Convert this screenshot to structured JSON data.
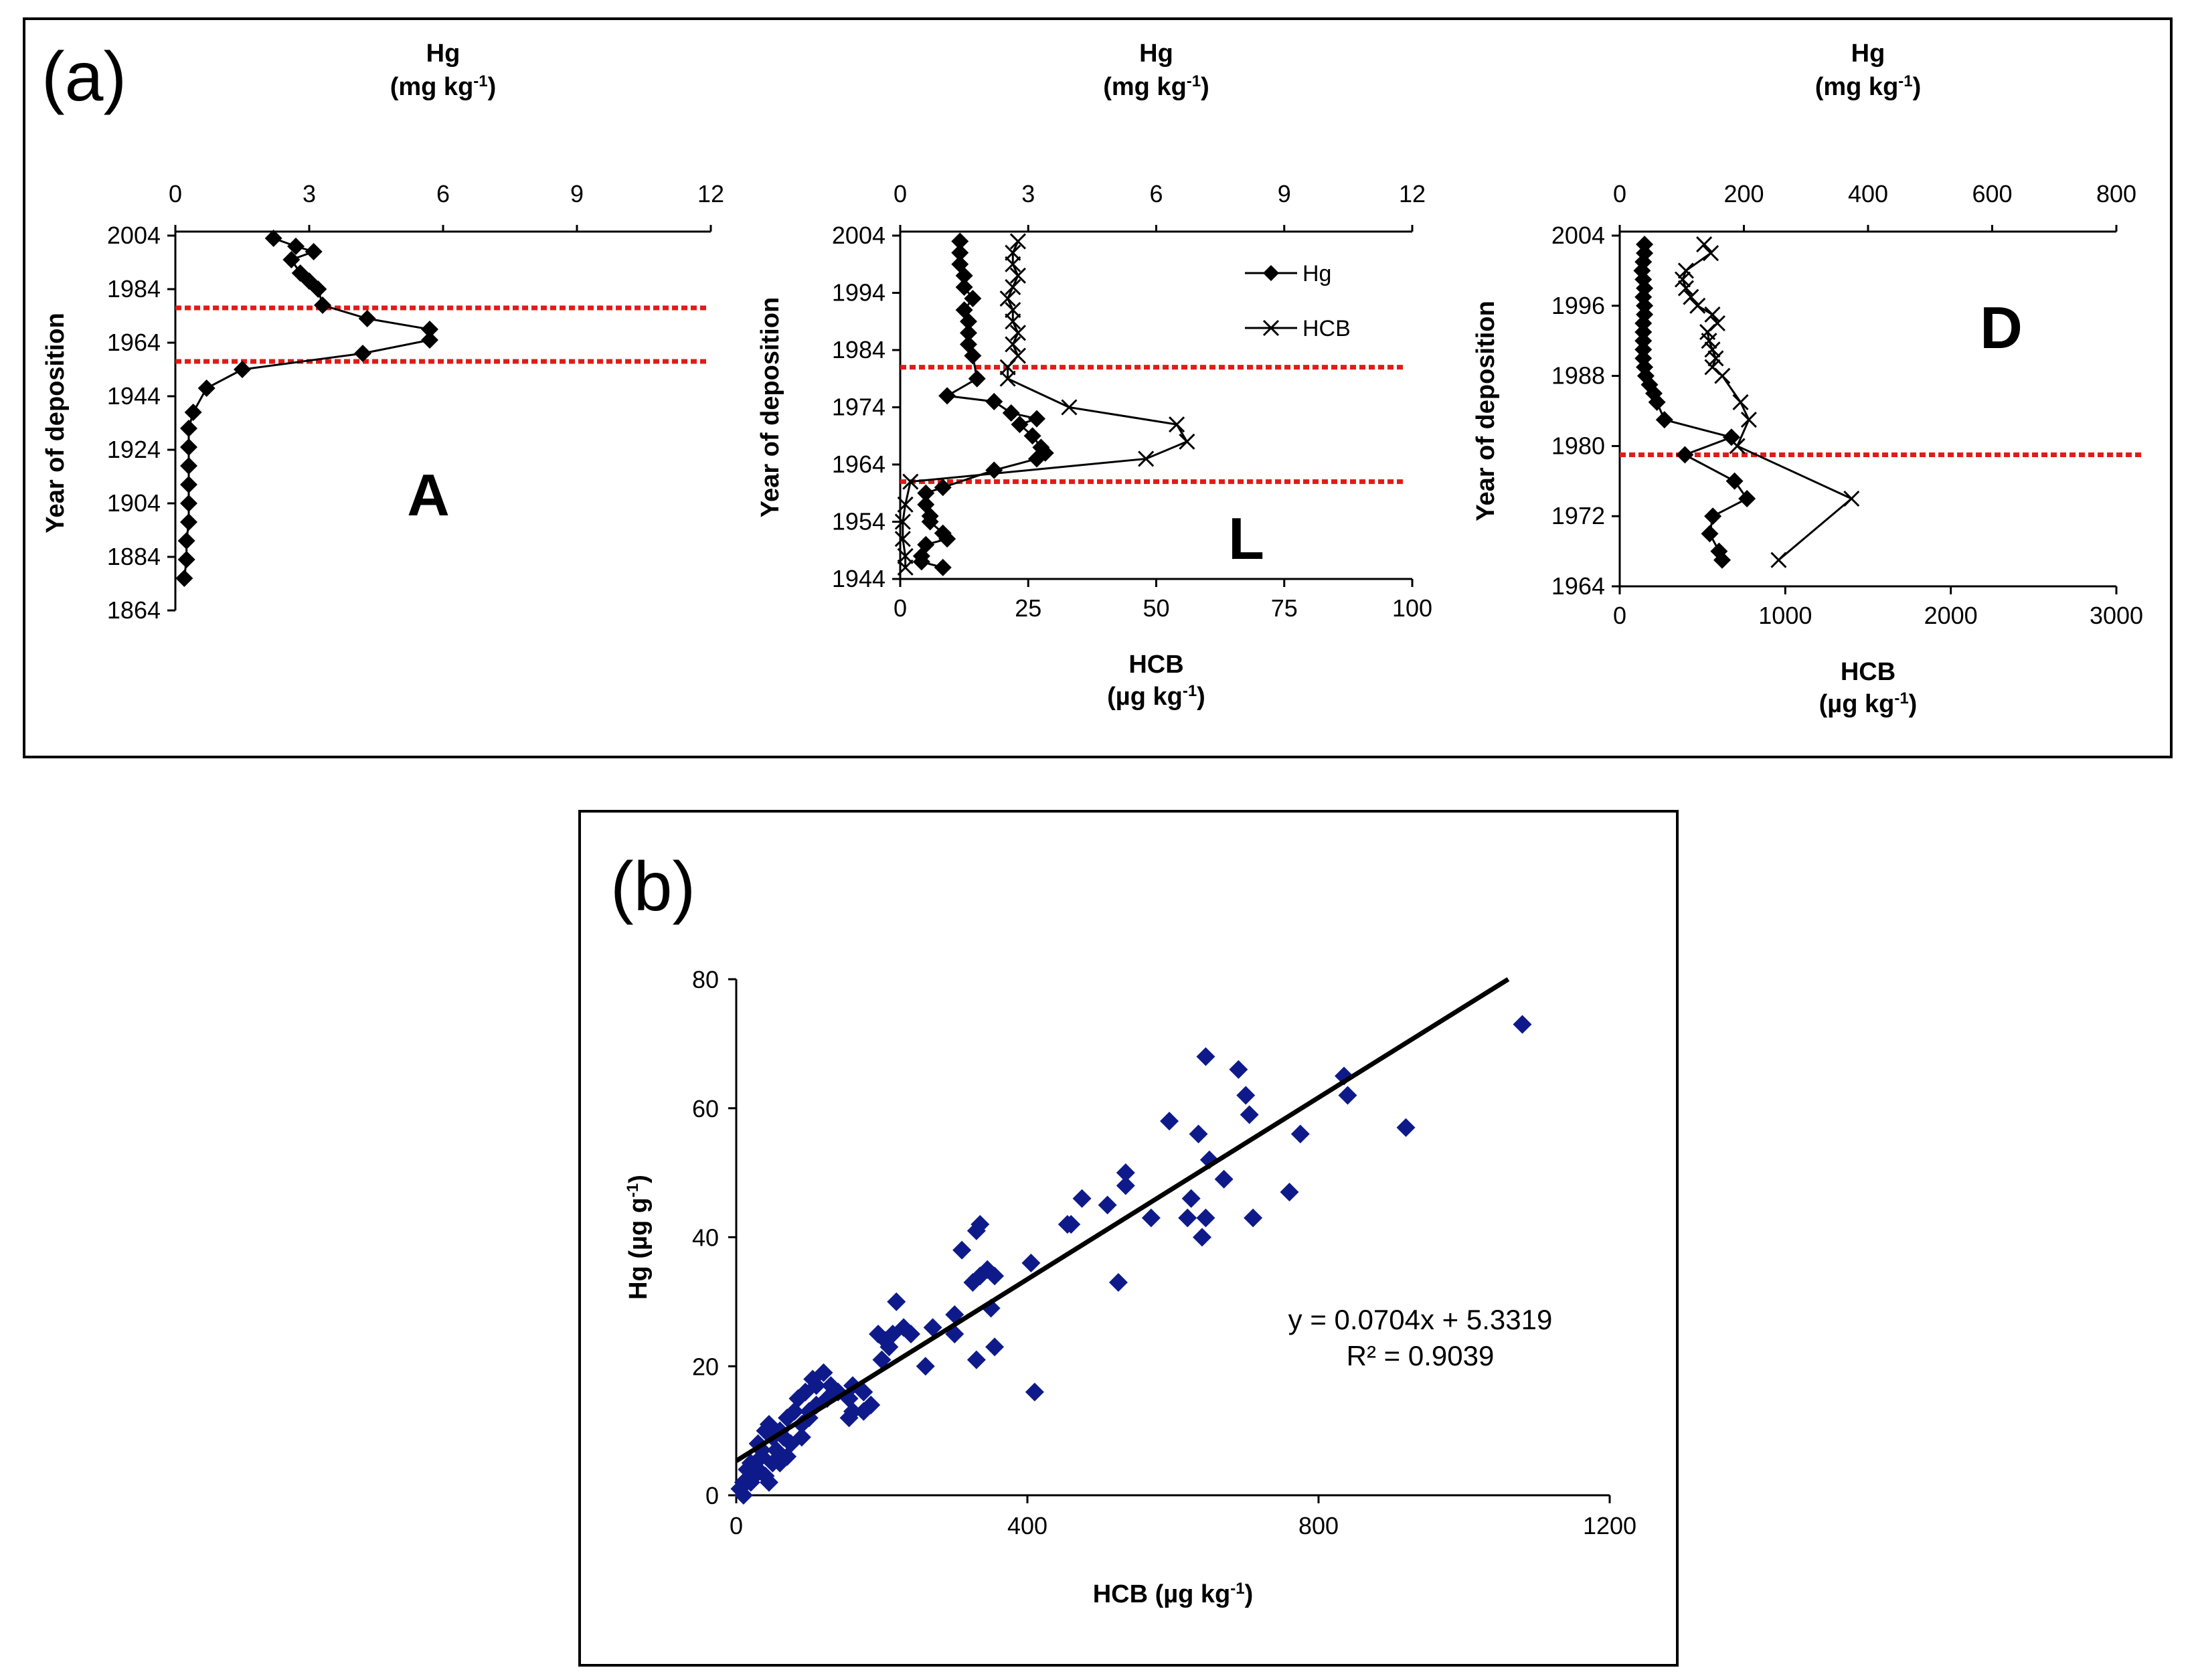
{
  "figure_labels": {
    "a": "(a)",
    "b": "(b)"
  },
  "chart_data": [
    {
      "type": "line",
      "panel": "(a)",
      "site_label": "A",
      "x_top_label": "Hg",
      "x_top_unit": "(mg kg-1)",
      "x_top_ticks": [
        "0",
        "3",
        "6",
        "9",
        "12"
      ],
      "xlim_top": [
        0,
        12
      ],
      "ylabel": "Year of deposition",
      "y_ticks": [
        "2004",
        "1984",
        "1964",
        "1944",
        "1924",
        "1904",
        "1884",
        "1864"
      ],
      "ylim": [
        1864,
        2004
      ],
      "reference_lines_year": [
        1977,
        1957
      ],
      "series": [
        {
          "name": "Hg",
          "axis": "top",
          "marker": "diamond",
          "points": [
            {
              "x": 2.2,
              "y": 2003
            },
            {
              "x": 2.7,
              "y": 2000
            },
            {
              "x": 3.1,
              "y": 1998
            },
            {
              "x": 2.6,
              "y": 1995
            },
            {
              "x": 2.8,
              "y": 1990
            },
            {
              "x": 3.0,
              "y": 1987
            },
            {
              "x": 3.2,
              "y": 1984
            },
            {
              "x": 3.3,
              "y": 1978
            },
            {
              "x": 4.3,
              "y": 1973
            },
            {
              "x": 5.7,
              "y": 1969
            },
            {
              "x": 5.7,
              "y": 1965
            },
            {
              "x": 4.2,
              "y": 1960
            },
            {
              "x": 1.5,
              "y": 1954
            },
            {
              "x": 0.7,
              "y": 1947
            },
            {
              "x": 0.4,
              "y": 1938
            },
            {
              "x": 0.3,
              "y": 1932
            },
            {
              "x": 0.3,
              "y": 1925
            },
            {
              "x": 0.3,
              "y": 1918
            },
            {
              "x": 0.3,
              "y": 1911
            },
            {
              "x": 0.3,
              "y": 1904
            },
            {
              "x": 0.3,
              "y": 1897
            },
            {
              "x": 0.25,
              "y": 1890
            },
            {
              "x": 0.25,
              "y": 1883
            },
            {
              "x": 0.2,
              "y": 1876
            }
          ]
        }
      ]
    },
    {
      "type": "line",
      "panel": "(a)",
      "site_label": "L",
      "x_top_label": "Hg",
      "x_top_unit": "(mg kg-1)",
      "x_top_ticks": [
        "0",
        "3",
        "6",
        "9",
        "12"
      ],
      "xlim_top": [
        0,
        12
      ],
      "x_bottom_label": "HCB",
      "x_bottom_unit": "(µg kg-1)",
      "x_bottom_ticks": [
        "0",
        "25",
        "50",
        "75",
        "100"
      ],
      "xlim_bottom": [
        0,
        100
      ],
      "ylabel": "Year of deposition",
      "y_ticks": [
        "2004",
        "1994",
        "1984",
        "1974",
        "1964",
        "1954",
        "1944"
      ],
      "ylim": [
        1944,
        2004
      ],
      "reference_lines_year": [
        1981,
        1961
      ],
      "legend": [
        "Hg",
        "HCB"
      ],
      "series": [
        {
          "name": "Hg",
          "axis": "top",
          "marker": "diamond",
          "points": [
            {
              "x": 1.4,
              "y": 2003
            },
            {
              "x": 1.4,
              "y": 2001
            },
            {
              "x": 1.4,
              "y": 1999
            },
            {
              "x": 1.5,
              "y": 1997
            },
            {
              "x": 1.5,
              "y": 1995
            },
            {
              "x": 1.7,
              "y": 1993
            },
            {
              "x": 1.5,
              "y": 1991
            },
            {
              "x": 1.6,
              "y": 1989
            },
            {
              "x": 1.6,
              "y": 1987
            },
            {
              "x": 1.6,
              "y": 1985
            },
            {
              "x": 1.7,
              "y": 1983
            },
            {
              "x": 1.8,
              "y": 1979
            },
            {
              "x": 1.1,
              "y": 1976
            },
            {
              "x": 2.2,
              "y": 1975
            },
            {
              "x": 2.6,
              "y": 1973
            },
            {
              "x": 3.2,
              "y": 1972
            },
            {
              "x": 2.8,
              "y": 1971
            },
            {
              "x": 3.1,
              "y": 1969
            },
            {
              "x": 3.3,
              "y": 1967
            },
            {
              "x": 3.4,
              "y": 1966
            },
            {
              "x": 3.2,
              "y": 1965
            },
            {
              "x": 2.2,
              "y": 1963
            },
            {
              "x": 1.0,
              "y": 1960
            },
            {
              "x": 0.6,
              "y": 1959
            },
            {
              "x": 0.6,
              "y": 1957
            },
            {
              "x": 0.7,
              "y": 1955
            },
            {
              "x": 0.7,
              "y": 1954
            },
            {
              "x": 1.0,
              "y": 1952
            },
            {
              "x": 1.1,
              "y": 1951
            },
            {
              "x": 0.6,
              "y": 1950
            },
            {
              "x": 0.5,
              "y": 1948
            },
            {
              "x": 0.5,
              "y": 1947
            },
            {
              "x": 1.0,
              "y": 1946
            }
          ]
        },
        {
          "name": "HCB",
          "axis": "bottom",
          "marker": "x",
          "points": [
            {
              "x": 23,
              "y": 2003
            },
            {
              "x": 22,
              "y": 2001
            },
            {
              "x": 22,
              "y": 1999
            },
            {
              "x": 23,
              "y": 1997
            },
            {
              "x": 22,
              "y": 1995
            },
            {
              "x": 21,
              "y": 1993
            },
            {
              "x": 22,
              "y": 1991
            },
            {
              "x": 22,
              "y": 1989
            },
            {
              "x": 23,
              "y": 1987
            },
            {
              "x": 22,
              "y": 1985
            },
            {
              "x": 23,
              "y": 1983
            },
            {
              "x": 21,
              "y": 1981
            },
            {
              "x": 21,
              "y": 1979
            },
            {
              "x": 33,
              "y": 1974
            },
            {
              "x": 54,
              "y": 1971
            },
            {
              "x": 56,
              "y": 1968
            },
            {
              "x": 48,
              "y": 1965
            },
            {
              "x": 2,
              "y": 1961
            },
            {
              "x": 1,
              "y": 1957
            },
            {
              "x": 0.5,
              "y": 1954
            },
            {
              "x": 0.5,
              "y": 1951
            },
            {
              "x": 1,
              "y": 1948
            },
            {
              "x": 1,
              "y": 1946
            }
          ]
        }
      ]
    },
    {
      "type": "line",
      "panel": "(a)",
      "site_label": "D",
      "x_top_label": "Hg",
      "x_top_unit": "(mg kg-1)",
      "x_top_ticks": [
        "0",
        "200",
        "400",
        "600",
        "800"
      ],
      "xlim_top": [
        0,
        800
      ],
      "x_bottom_label": "HCB",
      "x_bottom_unit": "(µg kg-1)",
      "x_bottom_ticks": [
        "0",
        "1000",
        "2000",
        "3000"
      ],
      "xlim_bottom": [
        0,
        3000
      ],
      "ylabel": "Year of deposition",
      "y_ticks": [
        "2004",
        "1996",
        "1988",
        "1980",
        "1972",
        "1964"
      ],
      "ylim": [
        1964,
        2004
      ],
      "reference_lines_year": [
        1979
      ],
      "series": [
        {
          "name": "Hg",
          "axis": "top",
          "marker": "diamond",
          "points": [
            {
              "x": 40,
              "y": 2003
            },
            {
              "x": 40,
              "y": 2002
            },
            {
              "x": 38,
              "y": 2001
            },
            {
              "x": 36,
              "y": 2000
            },
            {
              "x": 38,
              "y": 1999
            },
            {
              "x": 40,
              "y": 1998
            },
            {
              "x": 38,
              "y": 1997
            },
            {
              "x": 40,
              "y": 1996
            },
            {
              "x": 40,
              "y": 1995
            },
            {
              "x": 38,
              "y": 1994
            },
            {
              "x": 38,
              "y": 1993
            },
            {
              "x": 38,
              "y": 1992
            },
            {
              "x": 38,
              "y": 1991
            },
            {
              "x": 38,
              "y": 1990
            },
            {
              "x": 40,
              "y": 1989
            },
            {
              "x": 42,
              "y": 1988
            },
            {
              "x": 48,
              "y": 1987
            },
            {
              "x": 55,
              "y": 1986
            },
            {
              "x": 60,
              "y": 1985
            },
            {
              "x": 72,
              "y": 1983
            },
            {
              "x": 180,
              "y": 1981
            },
            {
              "x": 105,
              "y": 1979
            },
            {
              "x": 185,
              "y": 1976
            },
            {
              "x": 205,
              "y": 1974
            },
            {
              "x": 150,
              "y": 1972
            },
            {
              "x": 145,
              "y": 1970
            },
            {
              "x": 160,
              "y": 1968
            },
            {
              "x": 165,
              "y": 1967
            }
          ]
        },
        {
          "name": "HCB",
          "axis": "bottom",
          "marker": "x",
          "points": [
            {
              "x": 510,
              "y": 2003
            },
            {
              "x": 550,
              "y": 2002
            },
            {
              "x": 400,
              "y": 2000
            },
            {
              "x": 380,
              "y": 1999
            },
            {
              "x": 400,
              "y": 1998
            },
            {
              "x": 430,
              "y": 1997
            },
            {
              "x": 470,
              "y": 1996
            },
            {
              "x": 560,
              "y": 1995
            },
            {
              "x": 590,
              "y": 1994
            },
            {
              "x": 530,
              "y": 1993
            },
            {
              "x": 540,
              "y": 1992
            },
            {
              "x": 560,
              "y": 1991
            },
            {
              "x": 580,
              "y": 1990
            },
            {
              "x": 560,
              "y": 1989
            },
            {
              "x": 620,
              "y": 1988
            },
            {
              "x": 730,
              "y": 1985
            },
            {
              "x": 780,
              "y": 1983
            },
            {
              "x": 710,
              "y": 1980
            },
            {
              "x": 1400,
              "y": 1974
            },
            {
              "x": 960,
              "y": 1967
            }
          ]
        }
      ]
    },
    {
      "type": "scatter",
      "panel": "(b)",
      "xlabel": "HCB (µg kg-1)",
      "ylabel": "Hg (µg g-1)",
      "x_ticks": [
        "0",
        "400",
        "800",
        "1200"
      ],
      "y_ticks": [
        "0",
        "20",
        "40",
        "60",
        "80"
      ],
      "xlim": [
        0,
        1200
      ],
      "ylim": [
        0,
        80
      ],
      "equation": "y = 0.0704x + 5.3319",
      "r_squared": "R² = 0.9039",
      "trendline": {
        "slope": 0.0704,
        "intercept": 5.3319
      },
      "color": "#0f1a8a",
      "points": [
        [
          1080,
          73
        ],
        [
          645,
          68
        ],
        [
          690,
          66
        ],
        [
          700,
          62
        ],
        [
          835,
          65
        ],
        [
          840,
          62
        ],
        [
          705,
          59
        ],
        [
          595,
          58
        ],
        [
          920,
          57
        ],
        [
          775,
          56
        ],
        [
          635,
          56
        ],
        [
          650,
          52
        ],
        [
          535,
          50
        ],
        [
          670,
          49
        ],
        [
          535,
          48
        ],
        [
          760,
          47
        ],
        [
          475,
          46
        ],
        [
          625,
          46
        ],
        [
          510,
          45
        ],
        [
          620,
          43
        ],
        [
          570,
          43
        ],
        [
          645,
          43
        ],
        [
          710,
          43
        ],
        [
          455,
          42
        ],
        [
          460,
          42
        ],
        [
          335,
          42
        ],
        [
          330,
          41
        ],
        [
          640,
          40
        ],
        [
          310,
          38
        ],
        [
          405,
          36
        ],
        [
          345,
          35
        ],
        [
          335,
          34
        ],
        [
          355,
          34
        ],
        [
          325,
          33
        ],
        [
          525,
          33
        ],
        [
          220,
          30
        ],
        [
          350,
          29
        ],
        [
          300,
          28
        ],
        [
          270,
          26
        ],
        [
          230,
          26
        ],
        [
          240,
          25
        ],
        [
          195,
          25
        ],
        [
          215,
          25
        ],
        [
          205,
          24
        ],
        [
          300,
          25
        ],
        [
          355,
          23
        ],
        [
          210,
          23
        ],
        [
          260,
          20
        ],
        [
          200,
          21
        ],
        [
          330,
          21
        ],
        [
          160,
          17
        ],
        [
          175,
          16
        ],
        [
          410,
          16
        ],
        [
          155,
          15
        ],
        [
          185,
          14
        ],
        [
          160,
          13
        ],
        [
          175,
          13
        ],
        [
          155,
          12
        ],
        [
          120,
          19
        ],
        [
          105,
          18
        ],
        [
          95,
          16
        ],
        [
          110,
          17
        ],
        [
          125,
          15
        ],
        [
          85,
          15
        ],
        [
          70,
          12
        ],
        [
          60,
          10
        ],
        [
          80,
          13
        ],
        [
          90,
          11
        ],
        [
          100,
          13
        ],
        [
          45,
          11
        ],
        [
          40,
          10
        ],
        [
          50,
          9
        ],
        [
          30,
          8
        ],
        [
          35,
          7
        ],
        [
          55,
          7
        ],
        [
          70,
          6
        ],
        [
          90,
          9
        ],
        [
          20,
          5
        ],
        [
          15,
          4
        ],
        [
          25,
          3
        ],
        [
          10,
          2
        ],
        [
          5,
          1
        ],
        [
          10,
          0
        ],
        [
          45,
          2
        ],
        [
          30,
          4
        ],
        [
          60,
          5
        ],
        [
          40,
          3
        ],
        [
          20,
          2
        ],
        [
          35,
          6
        ],
        [
          50,
          5
        ],
        [
          65,
          9
        ],
        [
          75,
          8
        ],
        [
          110,
          14
        ],
        [
          130,
          17
        ],
        [
          140,
          16
        ],
        [
          100,
          12
        ]
      ]
    }
  ]
}
